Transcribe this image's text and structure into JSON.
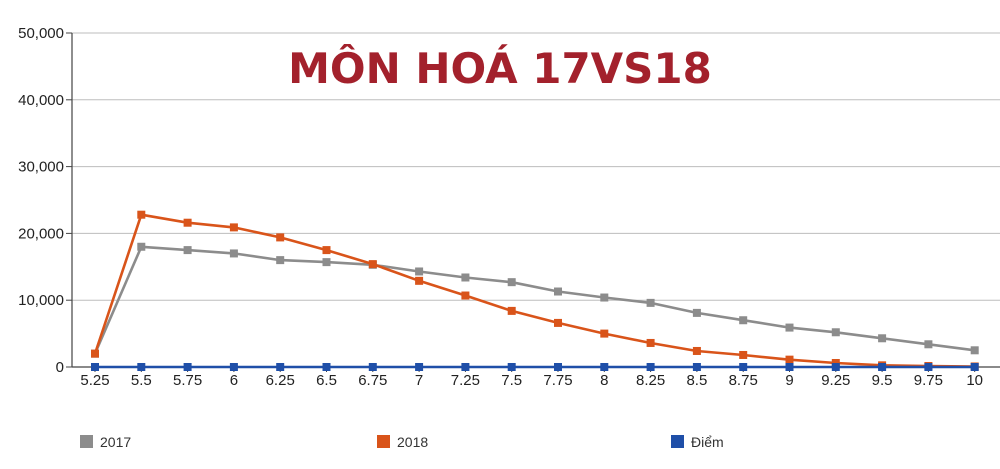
{
  "chart_data": {
    "type": "line",
    "title": "MÔN HOÁ 17VS18",
    "xlabel": "",
    "ylabel": "",
    "categories": [
      "5.25",
      "5.5",
      "5.75",
      "6",
      "6.25",
      "6.5",
      "6.75",
      "7",
      "7.25",
      "7.5",
      "7.75",
      "8",
      "8.25",
      "8.5",
      "8.75",
      "9",
      "9.25",
      "9.5",
      "9.75",
      "10"
    ],
    "y_ticks": [
      "0",
      "10,000",
      "20,000",
      "30,000",
      "40,000",
      "50,000"
    ],
    "ylim": [
      0,
      50000
    ],
    "grid": true,
    "legend_position": "bottom",
    "series": [
      {
        "name": "2017",
        "color": "#8c8c8c",
        "values": [
          2000,
          18000,
          17500,
          17000,
          16000,
          15700,
          15300,
          14300,
          13400,
          12700,
          11300,
          10400,
          9600,
          8100,
          7000,
          5900,
          5200,
          4300,
          3400,
          2500
        ]
      },
      {
        "name": "2018",
        "color": "#d9541a",
        "values": [
          2000,
          22800,
          21600,
          20900,
          19400,
          17500,
          15400,
          12900,
          10700,
          8400,
          6600,
          5000,
          3600,
          2400,
          1800,
          1100,
          600,
          250,
          150,
          80
        ]
      },
      {
        "name": "Điểm",
        "color": "#1f4fa8",
        "values": [
          0,
          0,
          0,
          0,
          0,
          0,
          0,
          0,
          0,
          0,
          0,
          0,
          0,
          0,
          0,
          0,
          0,
          0,
          0,
          0
        ]
      }
    ]
  }
}
